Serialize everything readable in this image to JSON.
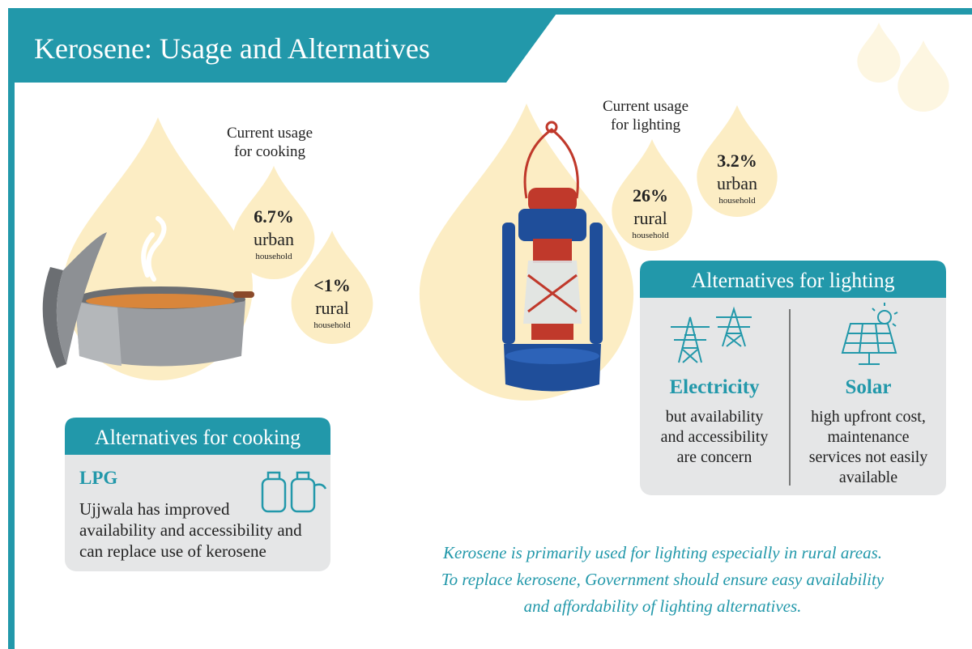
{
  "header": {
    "title": "Kerosene: Usage and Alternatives"
  },
  "cooking": {
    "usage_label": [
      "Current usage",
      "for cooking"
    ],
    "drops": [
      {
        "value": "6.7%",
        "area": "urban",
        "unit": "household"
      },
      {
        "value": "<1%",
        "area": "rural",
        "unit": "household"
      }
    ],
    "alternatives": {
      "title": "Alternatives for cooking",
      "name": "LPG",
      "text": [
        "Ujjwala has improved",
        "availability and accessibility and",
        "can replace use of kerosene"
      ]
    }
  },
  "lighting": {
    "usage_label": [
      "Current usage",
      "for lighting"
    ],
    "drops": [
      {
        "value": "26%",
        "area": "rural",
        "unit": "household"
      },
      {
        "value": "3.2%",
        "area": "urban",
        "unit": "household"
      }
    ],
    "alternatives": {
      "title": "Alternatives for lighting",
      "options": [
        {
          "name": "Electricity",
          "text": [
            "but availability",
            "and accessibility",
            "are concern"
          ]
        },
        {
          "name": "Solar",
          "text": [
            "high upfront cost,",
            "maintenance",
            "services not easily",
            "available"
          ]
        }
      ]
    }
  },
  "footer": [
    "Kerosene is primarily used for lighting especially in rural areas.",
    "To replace kerosene, Government should ensure easy availability",
    "and affordability of lighting alternatives."
  ]
}
